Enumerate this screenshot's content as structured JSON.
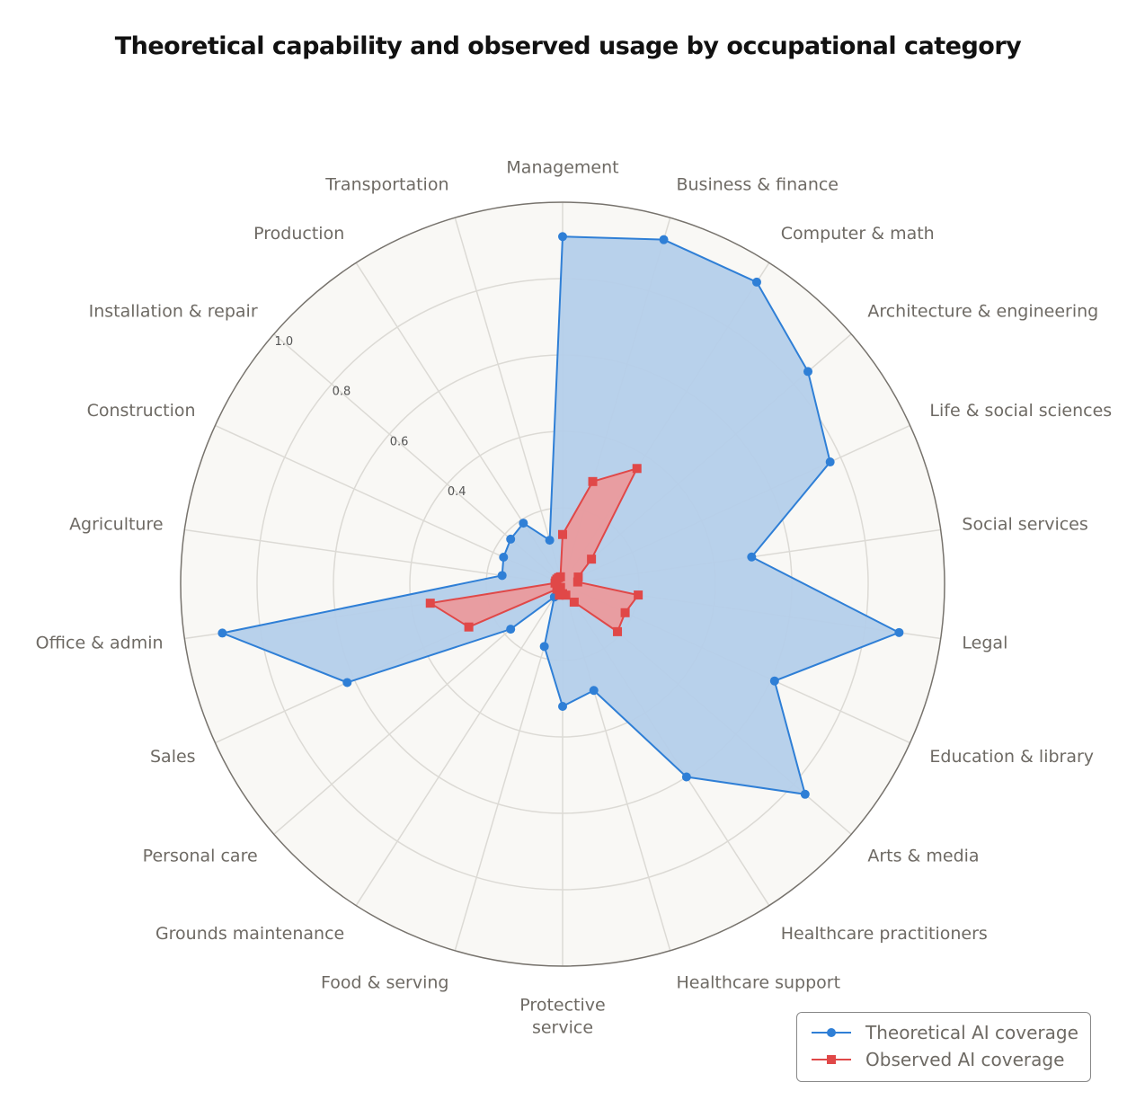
{
  "chart_data": {
    "type": "radar",
    "title": "Theoretical capability and observed usage by occupational category",
    "categories": [
      "Management",
      "Business & finance",
      "Computer & math",
      "Architecture & engineering",
      "Life & social sciences",
      "Social services",
      "Legal",
      "Education & library",
      "Arts & media",
      "Healthcare practitioners",
      "Healthcare support",
      "Protective service",
      "Food & serving",
      "Grounds maintenance",
      "Personal care",
      "Sales",
      "Office & admin",
      "Agriculture",
      "Construction",
      "Installation & repair",
      "Production",
      "Transportation"
    ],
    "radial_ticks": [
      "0.4",
      "0.6",
      "0.8",
      "1.0"
    ],
    "rlim": [
      0,
      1.0
    ],
    "grid": true,
    "legend_placement": "bottom-right",
    "series": [
      {
        "name": "Theoretical AI coverage",
        "color": "#2f7fd6",
        "fill": "#b4cfea",
        "marker": "circle",
        "values": [
          0.91,
          0.94,
          0.94,
          0.85,
          0.77,
          0.5,
          0.89,
          0.61,
          0.84,
          0.6,
          0.29,
          0.32,
          0.17,
          0.04,
          0.18,
          0.62,
          0.9,
          0.16,
          0.17,
          0.18,
          0.19,
          0.12
        ]
      },
      {
        "name": "Observed AI coverage",
        "color": "#e04848",
        "fill": "#f09494",
        "marker": "square",
        "values": [
          0.13,
          0.28,
          0.36,
          0.1,
          0.045,
          0.04,
          0.2,
          0.18,
          0.19,
          0.056,
          0.03,
          0.025,
          0.03,
          0.01,
          0.02,
          0.27,
          0.35,
          0.02,
          0.02,
          0.02,
          0.02,
          0.02
        ]
      }
    ]
  }
}
